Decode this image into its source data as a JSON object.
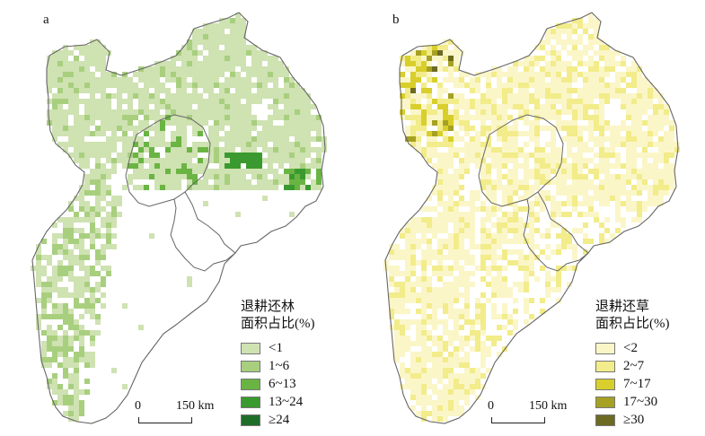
{
  "panels": [
    {
      "letter": "a",
      "legend_title_line1": "退耕还林",
      "legend_title_line2": "面积占比(%)",
      "classes": [
        {
          "label": "<1",
          "color": "#cfe2b2"
        },
        {
          "label": "1~6",
          "color": "#a8cf7e"
        },
        {
          "label": "6~13",
          "color": "#6ab443"
        },
        {
          "label": "13~24",
          "color": "#3b9a2f"
        },
        {
          "label": "≥24",
          "color": "#1e6e2a"
        }
      ],
      "scale_zero": "0",
      "scale_label": "150 km"
    },
    {
      "letter": "b",
      "legend_title_line1": "退耕还草",
      "legend_title_line2": "面积占比(%)",
      "classes": [
        {
          "label": "<2",
          "color": "#fbf6c8"
        },
        {
          "label": "2~7",
          "color": "#f2ec8a"
        },
        {
          "label": "7~17",
          "color": "#d9cf2c"
        },
        {
          "label": "17~30",
          "color": "#a6a123"
        },
        {
          "label": "≥30",
          "color": "#6d6a22"
        }
      ],
      "scale_zero": "0",
      "scale_label": "150 km"
    }
  ]
}
